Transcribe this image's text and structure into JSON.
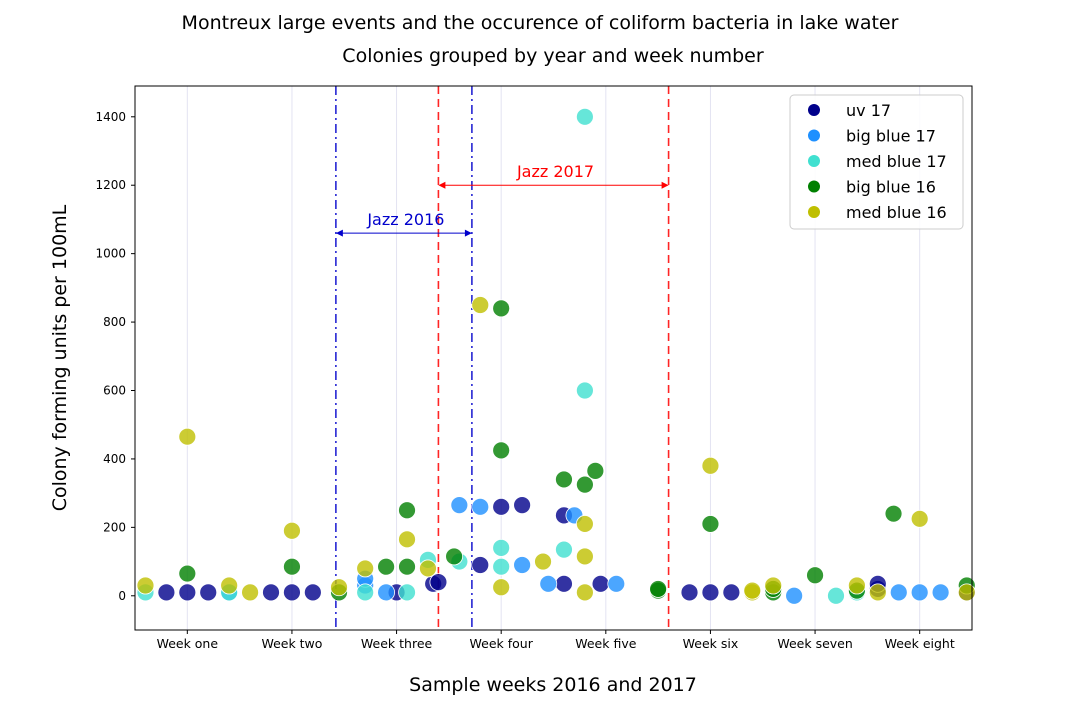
{
  "chart_data": {
    "type": "scatter",
    "title": "Montreux large events and the occurence of coliform bacteria in lake water",
    "subtitle": "Colonies grouped by year and week number",
    "xlabel": "Sample weeks 2016 and 2017",
    "ylabel": "Colony forming units per 100mL",
    "ylim": [
      -100,
      1490
    ],
    "xlim": [
      0,
      8
    ],
    "yticks": [
      0,
      200,
      400,
      600,
      800,
      1000,
      1200,
      1400
    ],
    "categories": [
      "Week one",
      "Week two",
      "Week three",
      "Week four",
      "Week five",
      "Week six",
      "Week seven",
      "Week eight"
    ],
    "grid": "vertical",
    "legend_position": "top-right",
    "series": [
      {
        "name": "uv 17",
        "color": "#00008b",
        "points": [
          {
            "x": 0.3,
            "y": 10
          },
          {
            "x": 0.5,
            "y": 10
          },
          {
            "x": 0.7,
            "y": 10
          },
          {
            "x": 1.3,
            "y": 10
          },
          {
            "x": 1.5,
            "y": 10
          },
          {
            "x": 1.7,
            "y": 10
          },
          {
            "x": 2.5,
            "y": 10
          },
          {
            "x": 2.85,
            "y": 35
          },
          {
            "x": 2.9,
            "y": 40
          },
          {
            "x": 3.3,
            "y": 90
          },
          {
            "x": 3.5,
            "y": 260
          },
          {
            "x": 3.7,
            "y": 265
          },
          {
            "x": 4.1,
            "y": 235
          },
          {
            "x": 4.1,
            "y": 35
          },
          {
            "x": 4.45,
            "y": 35
          },
          {
            "x": 5.3,
            "y": 10
          },
          {
            "x": 5.5,
            "y": 10
          },
          {
            "x": 5.7,
            "y": 10
          },
          {
            "x": 7.1,
            "y": 20
          },
          {
            "x": 7.1,
            "y": 35
          },
          {
            "x": 7.95,
            "y": 10
          }
        ]
      },
      {
        "name": "big blue 17",
        "color": "#1e90ff",
        "points": [
          {
            "x": 0.9,
            "y": 10
          },
          {
            "x": 2.2,
            "y": 30
          },
          {
            "x": 2.2,
            "y": 50
          },
          {
            "x": 2.4,
            "y": 10
          },
          {
            "x": 3.1,
            "y": 265
          },
          {
            "x": 3.3,
            "y": 260
          },
          {
            "x": 3.7,
            "y": 90
          },
          {
            "x": 3.95,
            "y": 35
          },
          {
            "x": 4.2,
            "y": 235
          },
          {
            "x": 4.6,
            "y": 35
          },
          {
            "x": 6.3,
            "y": 0
          },
          {
            "x": 7.3,
            "y": 10
          },
          {
            "x": 7.5,
            "y": 10
          },
          {
            "x": 7.7,
            "y": 10
          }
        ]
      },
      {
        "name": "med blue 17",
        "color": "#40e0d0",
        "points": [
          {
            "x": 0.1,
            "y": 10
          },
          {
            "x": 0.9,
            "y": 10
          },
          {
            "x": 2.2,
            "y": 10
          },
          {
            "x": 2.6,
            "y": 10
          },
          {
            "x": 2.8,
            "y": 105
          },
          {
            "x": 3.1,
            "y": 100
          },
          {
            "x": 3.5,
            "y": 85
          },
          {
            "x": 3.5,
            "y": 140
          },
          {
            "x": 4.3,
            "y": 600
          },
          {
            "x": 4.3,
            "y": 1400
          },
          {
            "x": 4.1,
            "y": 135
          },
          {
            "x": 6.7,
            "y": 0
          },
          {
            "x": 6.9,
            "y": 10
          }
        ]
      },
      {
        "name": "big blue 16",
        "color": "#008000",
        "points": [
          {
            "x": 0.5,
            "y": 65
          },
          {
            "x": 1.5,
            "y": 85
          },
          {
            "x": 1.95,
            "y": 10
          },
          {
            "x": 2.4,
            "y": 85
          },
          {
            "x": 2.6,
            "y": 85
          },
          {
            "x": 2.6,
            "y": 250
          },
          {
            "x": 3.05,
            "y": 115
          },
          {
            "x": 3.5,
            "y": 840
          },
          {
            "x": 3.5,
            "y": 425
          },
          {
            "x": 4.1,
            "y": 340
          },
          {
            "x": 4.3,
            "y": 325
          },
          {
            "x": 4.4,
            "y": 365
          },
          {
            "x": 5.0,
            "y": 15
          },
          {
            "x": 5.0,
            "y": 20
          },
          {
            "x": 5.5,
            "y": 210
          },
          {
            "x": 6.1,
            "y": 10
          },
          {
            "x": 6.1,
            "y": 20
          },
          {
            "x": 6.5,
            "y": 60
          },
          {
            "x": 6.9,
            "y": 15
          },
          {
            "x": 7.25,
            "y": 240
          },
          {
            "x": 7.95,
            "y": 30
          }
        ]
      },
      {
        "name": "med blue 16",
        "color": "#bfbf00",
        "points": [
          {
            "x": 0.1,
            "y": 30
          },
          {
            "x": 0.5,
            "y": 465
          },
          {
            "x": 0.9,
            "y": 30
          },
          {
            "x": 1.1,
            "y": 10
          },
          {
            "x": 1.5,
            "y": 190
          },
          {
            "x": 1.95,
            "y": 25
          },
          {
            "x": 2.2,
            "y": 80
          },
          {
            "x": 2.6,
            "y": 165
          },
          {
            "x": 2.8,
            "y": 80
          },
          {
            "x": 3.3,
            "y": 850
          },
          {
            "x": 3.5,
            "y": 25
          },
          {
            "x": 3.9,
            "y": 100
          },
          {
            "x": 4.3,
            "y": 210
          },
          {
            "x": 4.3,
            "y": 115
          },
          {
            "x": 4.3,
            "y": 10
          },
          {
            "x": 5.5,
            "y": 380
          },
          {
            "x": 5.9,
            "y": 10
          },
          {
            "x": 5.9,
            "y": 15
          },
          {
            "x": 6.1,
            "y": 30
          },
          {
            "x": 6.9,
            "y": 30
          },
          {
            "x": 7.1,
            "y": 10
          },
          {
            "x": 7.5,
            "y": 225
          },
          {
            "x": 7.95,
            "y": 10
          }
        ]
      }
    ],
    "annotations": [
      {
        "label": "Jazz 2016",
        "color": "#0000cc",
        "x_start": 1.92,
        "x_end": 3.22,
        "y": 1060,
        "line_style": "dash-dot"
      },
      {
        "label": "Jazz 2017",
        "color": "#ff0000",
        "x_start": 2.9,
        "x_end": 5.1,
        "y": 1200,
        "line_style": "dashed"
      }
    ]
  }
}
